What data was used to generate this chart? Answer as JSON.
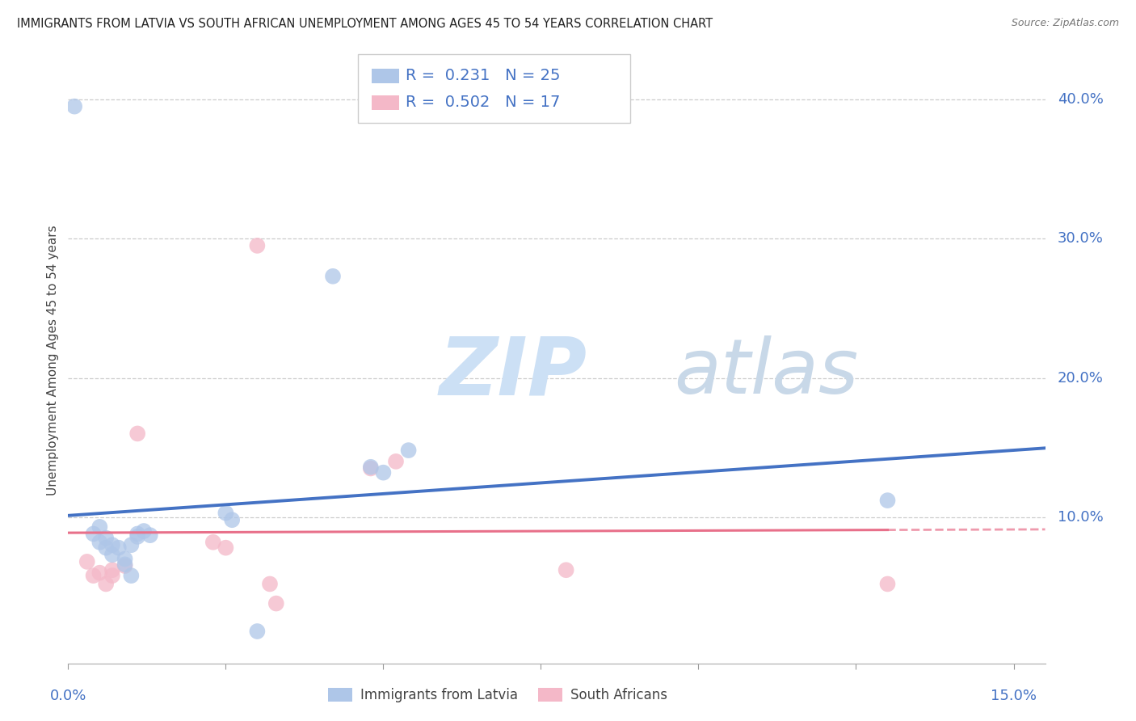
{
  "title": "IMMIGRANTS FROM LATVIA VS SOUTH AFRICAN UNEMPLOYMENT AMONG AGES 45 TO 54 YEARS CORRELATION CHART",
  "source": "Source: ZipAtlas.com",
  "ylabel": "Unemployment Among Ages 45 to 54 years",
  "xlim": [
    0.0,
    0.155
  ],
  "ylim": [
    -0.005,
    0.43
  ],
  "yticks_right": [
    0.1,
    0.2,
    0.3,
    0.4
  ],
  "yticklabels_right": [
    "10.0%",
    "20.0%",
    "30.0%",
    "40.0%"
  ],
  "blue_R": "0.231",
  "blue_N": "25",
  "pink_R": "0.502",
  "pink_N": "17",
  "blue_label": "Immigrants from Latvia",
  "pink_label": "South Africans",
  "blue_color": "#aec6e8",
  "pink_color": "#f4b8c8",
  "blue_line_color": "#4472c4",
  "pink_line_color": "#e8708a",
  "blue_scatter": [
    [
      0.001,
      0.395
    ],
    [
      0.004,
      0.088
    ],
    [
      0.005,
      0.093
    ],
    [
      0.005,
      0.082
    ],
    [
      0.006,
      0.078
    ],
    [
      0.006,
      0.085
    ],
    [
      0.007,
      0.08
    ],
    [
      0.007,
      0.073
    ],
    [
      0.008,
      0.078
    ],
    [
      0.009,
      0.07
    ],
    [
      0.009,
      0.066
    ],
    [
      0.01,
      0.08
    ],
    [
      0.01,
      0.058
    ],
    [
      0.011,
      0.088
    ],
    [
      0.011,
      0.086
    ],
    [
      0.012,
      0.09
    ],
    [
      0.013,
      0.087
    ],
    [
      0.025,
      0.103
    ],
    [
      0.026,
      0.098
    ],
    [
      0.03,
      0.018
    ],
    [
      0.042,
      0.273
    ],
    [
      0.048,
      0.136
    ],
    [
      0.05,
      0.132
    ],
    [
      0.054,
      0.148
    ],
    [
      0.13,
      0.112
    ]
  ],
  "pink_scatter": [
    [
      0.003,
      0.068
    ],
    [
      0.004,
      0.058
    ],
    [
      0.005,
      0.06
    ],
    [
      0.006,
      0.052
    ],
    [
      0.007,
      0.062
    ],
    [
      0.007,
      0.058
    ],
    [
      0.009,
      0.065
    ],
    [
      0.011,
      0.16
    ],
    [
      0.023,
      0.082
    ],
    [
      0.025,
      0.078
    ],
    [
      0.03,
      0.295
    ],
    [
      0.032,
      0.052
    ],
    [
      0.033,
      0.038
    ],
    [
      0.048,
      0.135
    ],
    [
      0.052,
      0.14
    ],
    [
      0.079,
      0.062
    ],
    [
      0.13,
      0.052
    ]
  ],
  "background_color": "#ffffff",
  "grid_color": "#cccccc",
  "watermark_zip_color": "#cce0f5",
  "watermark_atlas_color": "#c8d8e8",
  "title_fontsize": 10.5,
  "legend_text_color": "#4472c4"
}
